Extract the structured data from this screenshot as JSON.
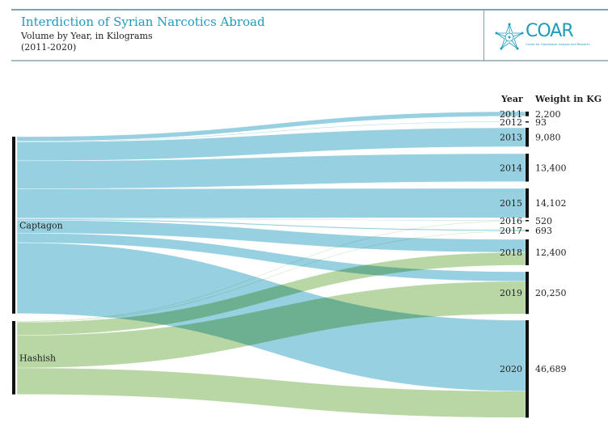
{
  "header": {
    "title": "Interdiction of Syrian Narcotics Abroad",
    "subtitle": "Volume by Year, in Kilograms",
    "years": "(2011-2020)",
    "logo_text": "COAR",
    "logo_subtext": "Center for Operational Analysis and Research"
  },
  "colors": {
    "captagon": "#97d0e0",
    "hashish": "#abd095",
    "node_bar": "#111111",
    "title": "#1f9bbd"
  },
  "chart_data": {
    "type": "sankey",
    "title": "Interdiction of Syrian Narcotics Abroad",
    "subtitle": "Volume by Year, in Kilograms (2011-2020)",
    "column_headers": {
      "year": "Year",
      "weight": "Weight in KG"
    },
    "sources": [
      "Captagon",
      "Hashish"
    ],
    "targets": [
      {
        "year": "2011",
        "total": 2200,
        "total_label": "2,200"
      },
      {
        "year": "2012",
        "total": 93,
        "total_label": "93"
      },
      {
        "year": "2013",
        "total": 9080,
        "total_label": "9,080"
      },
      {
        "year": "2014",
        "total": 13400,
        "total_label": "13,400"
      },
      {
        "year": "2015",
        "total": 14102,
        "total_label": "14,102"
      },
      {
        "year": "2016",
        "total": 520,
        "total_label": "520"
      },
      {
        "year": "2017",
        "total": 693,
        "total_label": "693"
      },
      {
        "year": "2018",
        "total": 12400,
        "total_label": "12,400"
      },
      {
        "year": "2019",
        "total": 20250,
        "total_label": "20,250"
      },
      {
        "year": "2020",
        "total": 46689,
        "total_label": "46,689"
      }
    ],
    "links": [
      {
        "source": "Captagon",
        "target": "2011",
        "value": 2200
      },
      {
        "source": "Captagon",
        "target": "2012",
        "value": 93
      },
      {
        "source": "Captagon",
        "target": "2013",
        "value": 9080
      },
      {
        "source": "Captagon",
        "target": "2014",
        "value": 13400
      },
      {
        "source": "Captagon",
        "target": "2015",
        "value": 14102
      },
      {
        "source": "Captagon",
        "target": "2016",
        "value": 220
      },
      {
        "source": "Captagon",
        "target": "2017",
        "value": 600
      },
      {
        "source": "Captagon",
        "target": "2018",
        "value": 6200
      },
      {
        "source": "Captagon",
        "target": "2019",
        "value": 4600
      },
      {
        "source": "Captagon",
        "target": "2020",
        "value": 34000
      },
      {
        "source": "Hashish",
        "target": "2016",
        "value": 300
      },
      {
        "source": "Hashish",
        "target": "2017",
        "value": 93
      },
      {
        "source": "Hashish",
        "target": "2018",
        "value": 6200
      },
      {
        "source": "Hashish",
        "target": "2019",
        "value": 15650
      },
      {
        "source": "Hashish",
        "target": "2020",
        "value": 12689
      }
    ]
  }
}
